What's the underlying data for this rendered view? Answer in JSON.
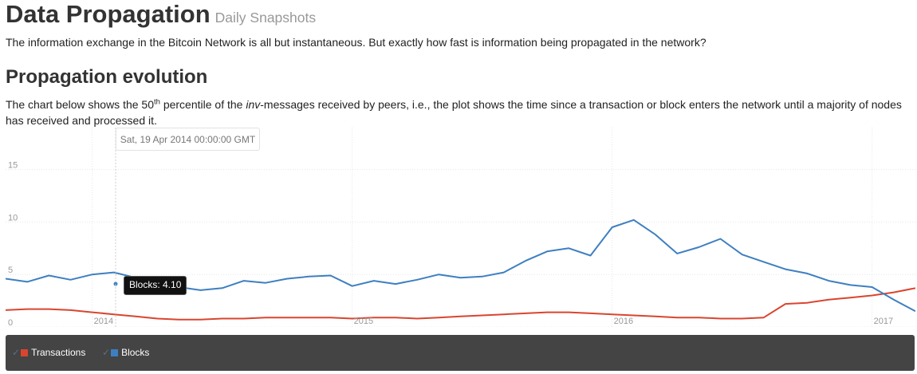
{
  "header": {
    "title": "Data Propagation",
    "subtitle": "Daily Snapshots"
  },
  "intro": "The information exchange in the Bitcoin Network is all but instantaneous. But exactly how fast is information being propagated in the network?",
  "section": {
    "heading": "Propagation evolution",
    "desc_part1": "The chart below shows the 50",
    "desc_sup": "th",
    "desc_part2": " percentile of the ",
    "desc_em": "inv",
    "desc_part3": "-messages received by peers, i.e., the plot shows the time since a transaction or block enters the network until a majority of nodes has received and processed it."
  },
  "hover": {
    "date": "Sat, 19 Apr 2014 00:00:00 GMT",
    "tooltip": "Blocks: 4.10"
  },
  "legend": {
    "items": [
      {
        "label": "Transactions",
        "check": "✓",
        "color": "#d9452f"
      },
      {
        "label": "Blocks",
        "check": "✓",
        "color": "#3e7fc1"
      }
    ]
  },
  "chart_data": {
    "type": "line",
    "ylim": [
      0,
      19
    ],
    "yticks": [
      {
        "value": 0,
        "label": "0"
      },
      {
        "value": 5,
        "label": "5"
      },
      {
        "value": 10,
        "label": "10"
      },
      {
        "value": 15,
        "label": "15"
      }
    ],
    "xticks": [
      "2014",
      "2015",
      "2016",
      "2017"
    ],
    "xlim": [
      "2013-09",
      "2017-03"
    ],
    "grid": true,
    "legend": "bottom",
    "series": [
      {
        "name": "Transactions",
        "color": "#d9452f",
        "x": [
          "2013-09",
          "2013-10",
          "2013-11",
          "2013-12",
          "2014-01",
          "2014-02",
          "2014-03",
          "2014-04",
          "2014-05",
          "2014-06",
          "2014-07",
          "2014-08",
          "2014-09",
          "2014-10",
          "2014-11",
          "2014-12",
          "2015-01",
          "2015-02",
          "2015-03",
          "2015-04",
          "2015-05",
          "2015-06",
          "2015-07",
          "2015-08",
          "2015-09",
          "2015-10",
          "2015-11",
          "2015-12",
          "2016-01",
          "2016-02",
          "2016-03",
          "2016-04",
          "2016-05",
          "2016-06",
          "2016-07",
          "2016-08",
          "2016-09",
          "2016-10",
          "2016-11",
          "2016-12",
          "2017-01",
          "2017-02",
          "2017-03"
        ],
        "values": [
          1.6,
          1.7,
          1.7,
          1.6,
          1.4,
          1.2,
          1.0,
          0.8,
          0.7,
          0.7,
          0.8,
          0.8,
          0.9,
          0.9,
          0.9,
          0.9,
          0.8,
          0.9,
          0.9,
          0.8,
          0.9,
          1.0,
          1.1,
          1.2,
          1.3,
          1.4,
          1.4,
          1.3,
          1.2,
          1.1,
          1.0,
          0.9,
          0.9,
          0.8,
          0.8,
          0.9,
          2.2,
          2.3,
          2.6,
          2.8,
          3.0,
          3.3,
          3.7
        ]
      },
      {
        "name": "Blocks",
        "color": "#3e7fc1",
        "x": [
          "2013-09",
          "2013-10",
          "2013-11",
          "2013-12",
          "2014-01",
          "2014-02",
          "2014-03",
          "2014-04",
          "2014-05",
          "2014-06",
          "2014-07",
          "2014-08",
          "2014-09",
          "2014-10",
          "2014-11",
          "2014-12",
          "2015-01",
          "2015-02",
          "2015-03",
          "2015-04",
          "2015-05",
          "2015-06",
          "2015-07",
          "2015-08",
          "2015-09",
          "2015-10",
          "2015-11",
          "2015-12",
          "2016-01",
          "2016-02",
          "2016-03",
          "2016-04",
          "2016-05",
          "2016-06",
          "2016-07",
          "2016-08",
          "2016-09",
          "2016-10",
          "2016-11",
          "2016-12",
          "2017-01",
          "2017-02",
          "2017-03"
        ],
        "values": [
          4.6,
          4.3,
          4.9,
          4.5,
          5.0,
          5.2,
          4.7,
          4.1,
          3.8,
          3.5,
          3.7,
          4.4,
          4.2,
          4.6,
          4.8,
          4.9,
          3.9,
          4.4,
          4.1,
          4.5,
          5.0,
          4.7,
          4.8,
          5.2,
          6.3,
          7.2,
          7.5,
          6.8,
          9.5,
          10.2,
          8.8,
          7.0,
          7.6,
          8.4,
          6.9,
          6.2,
          5.5,
          5.1,
          4.4,
          4.0,
          3.8,
          2.6,
          1.5
        ]
      }
    ]
  }
}
